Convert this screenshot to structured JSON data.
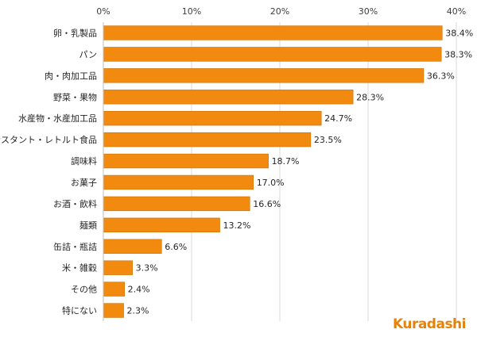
{
  "chart_data": {
    "type": "bar",
    "orientation": "horizontal",
    "categories": [
      "卵・乳製品",
      "パン",
      "肉・肉加工品",
      "野菜・果物",
      "水産物・水産加工品",
      "インスタント・レトルト食品",
      "調味料",
      "お菓子",
      "お酒・飲料",
      "麺類",
      "缶詰・瓶詰",
      "米・雑穀",
      "その他",
      "特にない"
    ],
    "values": [
      38.4,
      38.3,
      36.3,
      28.3,
      24.7,
      23.5,
      18.7,
      17.0,
      16.6,
      13.2,
      6.6,
      3.3,
      2.4,
      2.3
    ],
    "value_labels": [
      "38.4%",
      "38.3%",
      "36.3%",
      "28.3%",
      "24.7%",
      "23.5%",
      "18.7%",
      "17.0%",
      "16.6%",
      "13.2%",
      "6.6%",
      "3.3%",
      "2.4%",
      "2.3%"
    ],
    "xlim": [
      0,
      40
    ],
    "xticks": [
      0,
      10,
      20,
      30,
      40
    ],
    "xtick_labels": [
      "0%",
      "10%",
      "20%",
      "30%",
      "40%"
    ],
    "axis_position": "top",
    "grid": true,
    "bar_color": "#F28A0F",
    "bar_edge_color": "#C96F06"
  },
  "branding": {
    "logo_text_k": "K",
    "logo_text_rest": "uradashi",
    "logo_color": "#E5820C"
  }
}
